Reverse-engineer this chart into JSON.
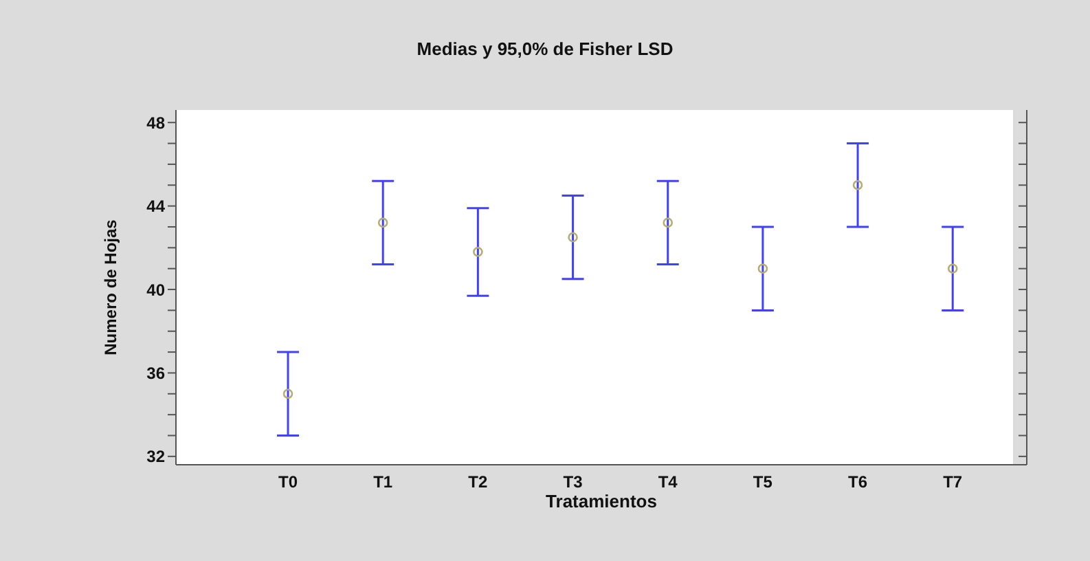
{
  "chart_data": {
    "type": "scatter",
    "title": "Medias y 95,0% de Fisher LSD",
    "xlabel": "Tratamientos",
    "ylabel": "Numero de Hojas",
    "categories": [
      "T0",
      "T1",
      "T2",
      "T3",
      "T4",
      "T5",
      "T6",
      "T7"
    ],
    "values": [
      35.0,
      43.2,
      41.8,
      42.5,
      43.2,
      41.0,
      45.0,
      41.0
    ],
    "errors": [
      2.0,
      2.0,
      2.1,
      2.0,
      2.0,
      2.0,
      2.0,
      2.0
    ],
    "color": "#b5ae72",
    "marker": "circle",
    "ylim": [
      31.6,
      48.6
    ],
    "yticks": [
      32,
      {
        "value": 33,
        "label": null
      },
      {
        "value": 34,
        "label": null
      },
      {
        "value": 35,
        "label": null
      },
      36,
      {
        "value": 37,
        "label": null
      },
      {
        "value": 38,
        "label": null
      },
      {
        "value": 39,
        "label": null
      },
      40,
      {
        "value": 41,
        "label": null
      },
      {
        "value": 42,
        "label": null
      },
      {
        "value": 43,
        "label": null
      },
      44,
      {
        "value": 45,
        "label": null
      },
      {
        "value": 46,
        "label": null
      },
      {
        "value": 47,
        "label": null
      },
      48
    ]
  }
}
